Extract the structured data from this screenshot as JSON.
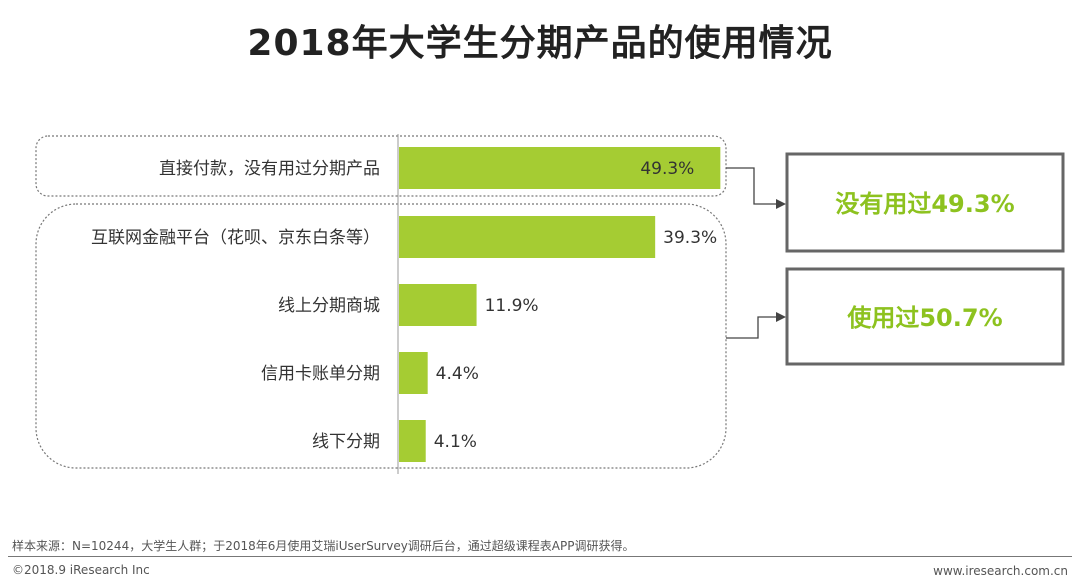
{
  "title": "2018年大学生分期产品的使用情况",
  "chart_data": {
    "type": "bar",
    "orientation": "horizontal",
    "title": "2018年大学生分期产品的使用情况",
    "categories": [
      "直接付款，没有用过分期产品",
      "互联网金融平台（花呗、京东白条等）",
      "线上分期商城",
      "信用卡账单分期",
      "线下分期"
    ],
    "values": [
      49.3,
      39.3,
      11.9,
      4.4,
      4.1
    ],
    "value_labels": [
      "49.3%",
      "39.3%",
      "11.9%",
      "4.4%",
      "4.1%"
    ],
    "unit": "%",
    "xlim": [
      0,
      50
    ],
    "bar_color": "#a5cc33"
  },
  "callouts": {
    "not_used": "没有用过49.3%",
    "used": "使用过50.7%"
  },
  "footer": {
    "source": "样本来源：N=10244，大学生人群；于2018年6月使用艾瑞iUserSurvey调研后台，通过超级课程表APP调研获得。",
    "copyright": "©2018.9 iResearch Inc",
    "website": "www.iresearch.com.cn"
  },
  "colors": {
    "bar": "#a5cc33",
    "callout_text": "#8dc21f",
    "callout_border": "#666666"
  }
}
